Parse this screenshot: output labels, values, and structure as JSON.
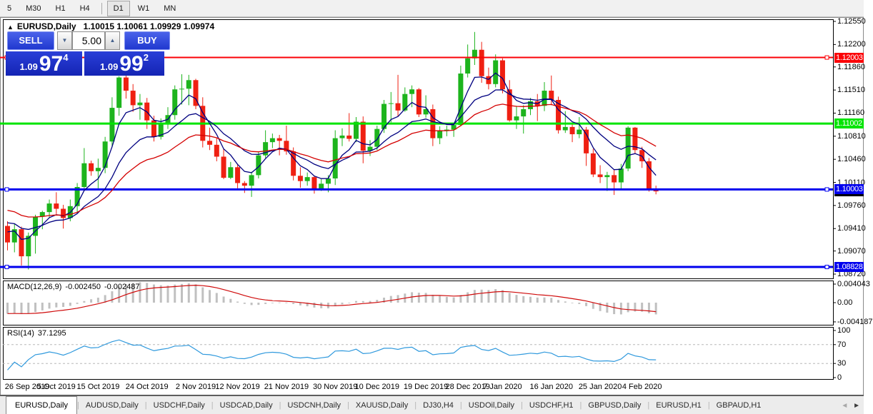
{
  "toolbar": {
    "periods": [
      {
        "label": "5"
      },
      {
        "label": "M30"
      },
      {
        "label": "H1"
      },
      {
        "label": "H4"
      },
      {
        "separator": true
      },
      {
        "label": "D1",
        "active": true
      },
      {
        "label": "W1"
      },
      {
        "label": "MN"
      }
    ]
  },
  "window": {
    "collapse_icon": "▲",
    "title": "EURUSD,Daily",
    "ohlc_text": "1.10015 1.10061 1.09929 1.09974"
  },
  "trade_panel": {
    "sell_label": "SELL",
    "buy_label": "BUY",
    "volume": "5.00",
    "down_arrow": "▼",
    "up_arrow": "▲",
    "sell_price": {
      "base": "1.09",
      "big": "97",
      "sup": "4"
    },
    "buy_price": {
      "base": "1.09",
      "big": "99",
      "sup": "2"
    }
  },
  "indicators": {
    "macd": {
      "label": "MACD(12,26,9)",
      "value_main": "-0.002450",
      "value_signal": "-0.002487",
      "axis_ticks": [
        {
          "label": "0.004043",
          "value": 0.004043
        },
        {
          "label": "0.00",
          "value": 0
        },
        {
          "label": "-0.004187",
          "value": -0.004187
        }
      ]
    },
    "rsi": {
      "label": "RSI(14)",
      "value": "37.1295",
      "levels": [
        70,
        30
      ],
      "axis_ticks": [
        {
          "label": "100",
          "value": 100
        },
        {
          "label": "70",
          "value": 70
        },
        {
          "label": "30",
          "value": 30
        },
        {
          "label": "0",
          "value": 0
        }
      ]
    }
  },
  "tabs": {
    "scroll_left": "◄",
    "scroll_right": "►",
    "items": [
      {
        "label": "EURUSD,Daily",
        "active": true
      },
      {
        "label": "AUDUSD,Daily"
      },
      {
        "label": "USDCHF,Daily"
      },
      {
        "label": "USDCAD,Daily"
      },
      {
        "label": "USDCNH,Daily"
      },
      {
        "label": "XAUUSD,Daily"
      },
      {
        "label": "DJ30,H4"
      },
      {
        "label": "USDOil,Daily"
      },
      {
        "label": "USDCHF,H1"
      },
      {
        "label": "GBPUSD,Daily"
      },
      {
        "label": "EURUSD,H1"
      },
      {
        "label": "GBPAUD,H1"
      }
    ]
  },
  "chart_data": {
    "type": "candlestick",
    "symbol": "EURUSD",
    "timeframe": "Daily",
    "price_axis": {
      "min": 1.0872,
      "max": 1.1255,
      "ticks": [
        "1.12550",
        "1.12200",
        "1.11860",
        "1.11510",
        "1.11160",
        "1.10810",
        "1.10460",
        "1.10110",
        "1.09760",
        "1.09410",
        "1.09070",
        "1.08720"
      ]
    },
    "hlines": [
      {
        "label": "1.12003",
        "price": 1.12003,
        "color": "#fb0207",
        "width": 2,
        "selected": true
      },
      {
        "label": "1.11002",
        "price": 1.11002,
        "color": "#00e400",
        "width": 3,
        "selected": false
      },
      {
        "label": "1.10003",
        "price": 1.10003,
        "color": "#0000ee",
        "width": 3,
        "selected": true
      },
      {
        "label": "1.08828",
        "price": 1.08828,
        "color": "#0000ee",
        "width": 3,
        "selected": true
      }
    ],
    "current_price": {
      "label": "1.09974",
      "price": 1.09974
    },
    "date_ticks": [
      {
        "index": 0,
        "label": "26 Sep 2019"
      },
      {
        "index": 7,
        "label": "5 Oct 2019"
      },
      {
        "index": 13,
        "label": "15 Oct 2019"
      },
      {
        "index": 20,
        "label": "24 Oct 2019"
      },
      {
        "index": 27,
        "label": "2 Nov 2019"
      },
      {
        "index": 33,
        "label": "12 Nov 2019"
      },
      {
        "index": 40,
        "label": "21 Nov 2019"
      },
      {
        "index": 47,
        "label": "30 Nov 2019"
      },
      {
        "index": 53,
        "label": "10 Dec 2019"
      },
      {
        "index": 60,
        "label": "19 Dec 2019"
      },
      {
        "index": 66,
        "label": "28 Dec 2019"
      },
      {
        "index": 71,
        "label": "7 Jan 2020"
      },
      {
        "index": 78,
        "label": "16 Jan 2020"
      },
      {
        "index": 85,
        "label": "25 Jan 2020"
      },
      {
        "index": 91,
        "label": "4 Feb 2020"
      }
    ],
    "moving_averages": [
      {
        "type": "ema",
        "period": 5,
        "color": "#000080"
      },
      {
        "type": "ema",
        "period": 13,
        "color": "#000080"
      },
      {
        "type": "ema",
        "period": 24,
        "color": "#d40000"
      }
    ],
    "colors": {
      "up": "#1db41d",
      "down": "#ef2012",
      "macd_hist": "#c0c0c0",
      "macd_signal": "#cf0a0a",
      "rsi": "#2f99dd"
    },
    "ohlc": [
      [
        1.0945,
        1.0952,
        1.0908,
        1.092
      ],
      [
        1.092,
        1.0948,
        1.0905,
        1.094
      ],
      [
        1.094,
        1.0944,
        1.0885,
        1.0899
      ],
      [
        1.0899,
        1.0935,
        1.0879,
        1.093
      ],
      [
        1.093,
        1.0962,
        1.0903,
        1.0959
      ],
      [
        1.0959,
        1.0968,
        1.094,
        1.0966
      ],
      [
        1.0966,
        1.0985,
        1.0957,
        1.0979
      ],
      [
        1.0979,
        1.0996,
        1.0963,
        1.0971
      ],
      [
        1.0971,
        1.0977,
        1.0941,
        1.0957
      ],
      [
        1.0957,
        1.0985,
        1.0952,
        1.0975
      ],
      [
        1.0975,
        1.101,
        1.0966,
        1.1004
      ],
      [
        1.1004,
        1.1063,
        1.1002,
        1.104
      ],
      [
        1.104,
        1.1044,
        1.1021,
        1.1028
      ],
      [
        1.1028,
        1.1047,
        1.1002,
        1.1033
      ],
      [
        1.1033,
        1.108,
        1.1025,
        1.1073
      ],
      [
        1.1073,
        1.114,
        1.1064,
        1.1124
      ],
      [
        1.1124,
        1.1172,
        1.1112,
        1.117
      ],
      [
        1.117,
        1.1179,
        1.1138,
        1.115
      ],
      [
        1.115,
        1.116,
        1.1118,
        1.1128
      ],
      [
        1.1128,
        1.1145,
        1.1106,
        1.1132
      ],
      [
        1.1132,
        1.1139,
        1.1092,
        1.1105
      ],
      [
        1.1105,
        1.1112,
        1.1073,
        1.108
      ],
      [
        1.108,
        1.1108,
        1.1076,
        1.1099
      ],
      [
        1.1099,
        1.1125,
        1.1092,
        1.1113
      ],
      [
        1.1113,
        1.1158,
        1.1106,
        1.1152
      ],
      [
        1.1152,
        1.1175,
        1.1129,
        1.1153
      ],
      [
        1.1153,
        1.1174,
        1.1128,
        1.1166
      ],
      [
        1.1166,
        1.1168,
        1.1122,
        1.1127
      ],
      [
        1.1127,
        1.114,
        1.1064,
        1.1074
      ],
      [
        1.1074,
        1.1094,
        1.106,
        1.1068
      ],
      [
        1.1068,
        1.1078,
        1.1043,
        1.105
      ],
      [
        1.105,
        1.1062,
        1.1016,
        1.1018
      ],
      [
        1.1018,
        1.1042,
        1.1016,
        1.1034
      ],
      [
        1.1034,
        1.1038,
        1.1002,
        1.101
      ],
      [
        1.101,
        1.1013,
        1.0995,
        1.1006
      ],
      [
        1.1006,
        1.1027,
        1.0989,
        1.1022
      ],
      [
        1.1022,
        1.1058,
        1.1017,
        1.1052
      ],
      [
        1.1052,
        1.109,
        1.1048,
        1.1072
      ],
      [
        1.1072,
        1.1085,
        1.1063,
        1.1078
      ],
      [
        1.1078,
        1.1083,
        1.1052,
        1.1074
      ],
      [
        1.1074,
        1.1097,
        1.1053,
        1.1058
      ],
      [
        1.1058,
        1.1064,
        1.1014,
        1.1021
      ],
      [
        1.1021,
        1.1034,
        1.1003,
        1.1013
      ],
      [
        1.1013,
        1.1026,
        1.1006,
        1.1019
      ],
      [
        1.1019,
        1.1021,
        1.0994,
        1.1001
      ],
      [
        1.1001,
        1.1016,
        1.0998,
        1.1009
      ],
      [
        1.1009,
        1.1022,
        1.0996,
        1.1017
      ],
      [
        1.1017,
        1.109,
        1.1007,
        1.1078
      ],
      [
        1.1078,
        1.1093,
        1.1066,
        1.1082
      ],
      [
        1.1082,
        1.1116,
        1.1073,
        1.1077
      ],
      [
        1.1077,
        1.111,
        1.1072,
        1.1103
      ],
      [
        1.1103,
        1.1111,
        1.104,
        1.1059
      ],
      [
        1.1059,
        1.1075,
        1.1051,
        1.1065
      ],
      [
        1.1065,
        1.1097,
        1.106,
        1.1092
      ],
      [
        1.1092,
        1.1136,
        1.1086,
        1.113
      ],
      [
        1.113,
        1.1148,
        1.1102,
        1.1131
      ],
      [
        1.1131,
        1.1174,
        1.1111,
        1.112
      ],
      [
        1.112,
        1.1155,
        1.1118,
        1.1145
      ],
      [
        1.1145,
        1.1158,
        1.1125,
        1.1152
      ],
      [
        1.1152,
        1.1154,
        1.111,
        1.1114
      ],
      [
        1.1114,
        1.1143,
        1.1109,
        1.1122
      ],
      [
        1.1122,
        1.1129,
        1.1066,
        1.1078
      ],
      [
        1.1078,
        1.1096,
        1.1069,
        1.1089
      ],
      [
        1.1089,
        1.1097,
        1.1081,
        1.1091
      ],
      [
        1.1091,
        1.11,
        1.108,
        1.1098
      ],
      [
        1.1098,
        1.1188,
        1.1096,
        1.1176
      ],
      [
        1.1176,
        1.122,
        1.117,
        1.1199
      ],
      [
        1.1199,
        1.1239,
        1.1189,
        1.1212
      ],
      [
        1.1212,
        1.1224,
        1.1162,
        1.1172
      ],
      [
        1.1172,
        1.1185,
        1.1152,
        1.116
      ],
      [
        1.116,
        1.1205,
        1.1155,
        1.1196
      ],
      [
        1.1196,
        1.1199,
        1.1146,
        1.1152
      ],
      [
        1.1152,
        1.1166,
        1.1103,
        1.1105
      ],
      [
        1.1105,
        1.1127,
        1.1092,
        1.1111
      ],
      [
        1.1111,
        1.1128,
        1.1085,
        1.1122
      ],
      [
        1.1122,
        1.1139,
        1.1113,
        1.1134
      ],
      [
        1.1134,
        1.1145,
        1.1104,
        1.1127
      ],
      [
        1.1127,
        1.1163,
        1.1119,
        1.115
      ],
      [
        1.115,
        1.1173,
        1.1128,
        1.1136
      ],
      [
        1.1136,
        1.1141,
        1.1085,
        1.109
      ],
      [
        1.109,
        1.1119,
        1.1086,
        1.1095
      ],
      [
        1.1095,
        1.1099,
        1.1072,
        1.1084
      ],
      [
        1.1084,
        1.111,
        1.1078,
        1.1091
      ],
      [
        1.1091,
        1.1095,
        1.1036,
        1.1055
      ],
      [
        1.1055,
        1.1062,
        1.1019,
        1.1023
      ],
      [
        1.1023,
        1.1037,
        1.101,
        1.1019
      ],
      [
        1.1019,
        1.1027,
        1.0998,
        1.1022
      ],
      [
        1.1022,
        1.103,
        1.0992,
        1.1011
      ],
      [
        1.1011,
        1.1039,
        1.1001,
        1.1032
      ],
      [
        1.1032,
        1.1096,
        1.1028,
        1.1094
      ],
      [
        1.1094,
        1.1095,
        1.1054,
        1.106
      ],
      [
        1.106,
        1.1065,
        1.1033,
        1.1043
      ],
      [
        1.1043,
        1.1048,
        1.0997,
        1.1
      ],
      [
        1.10015,
        1.10061,
        1.09929,
        1.09974
      ]
    ]
  }
}
